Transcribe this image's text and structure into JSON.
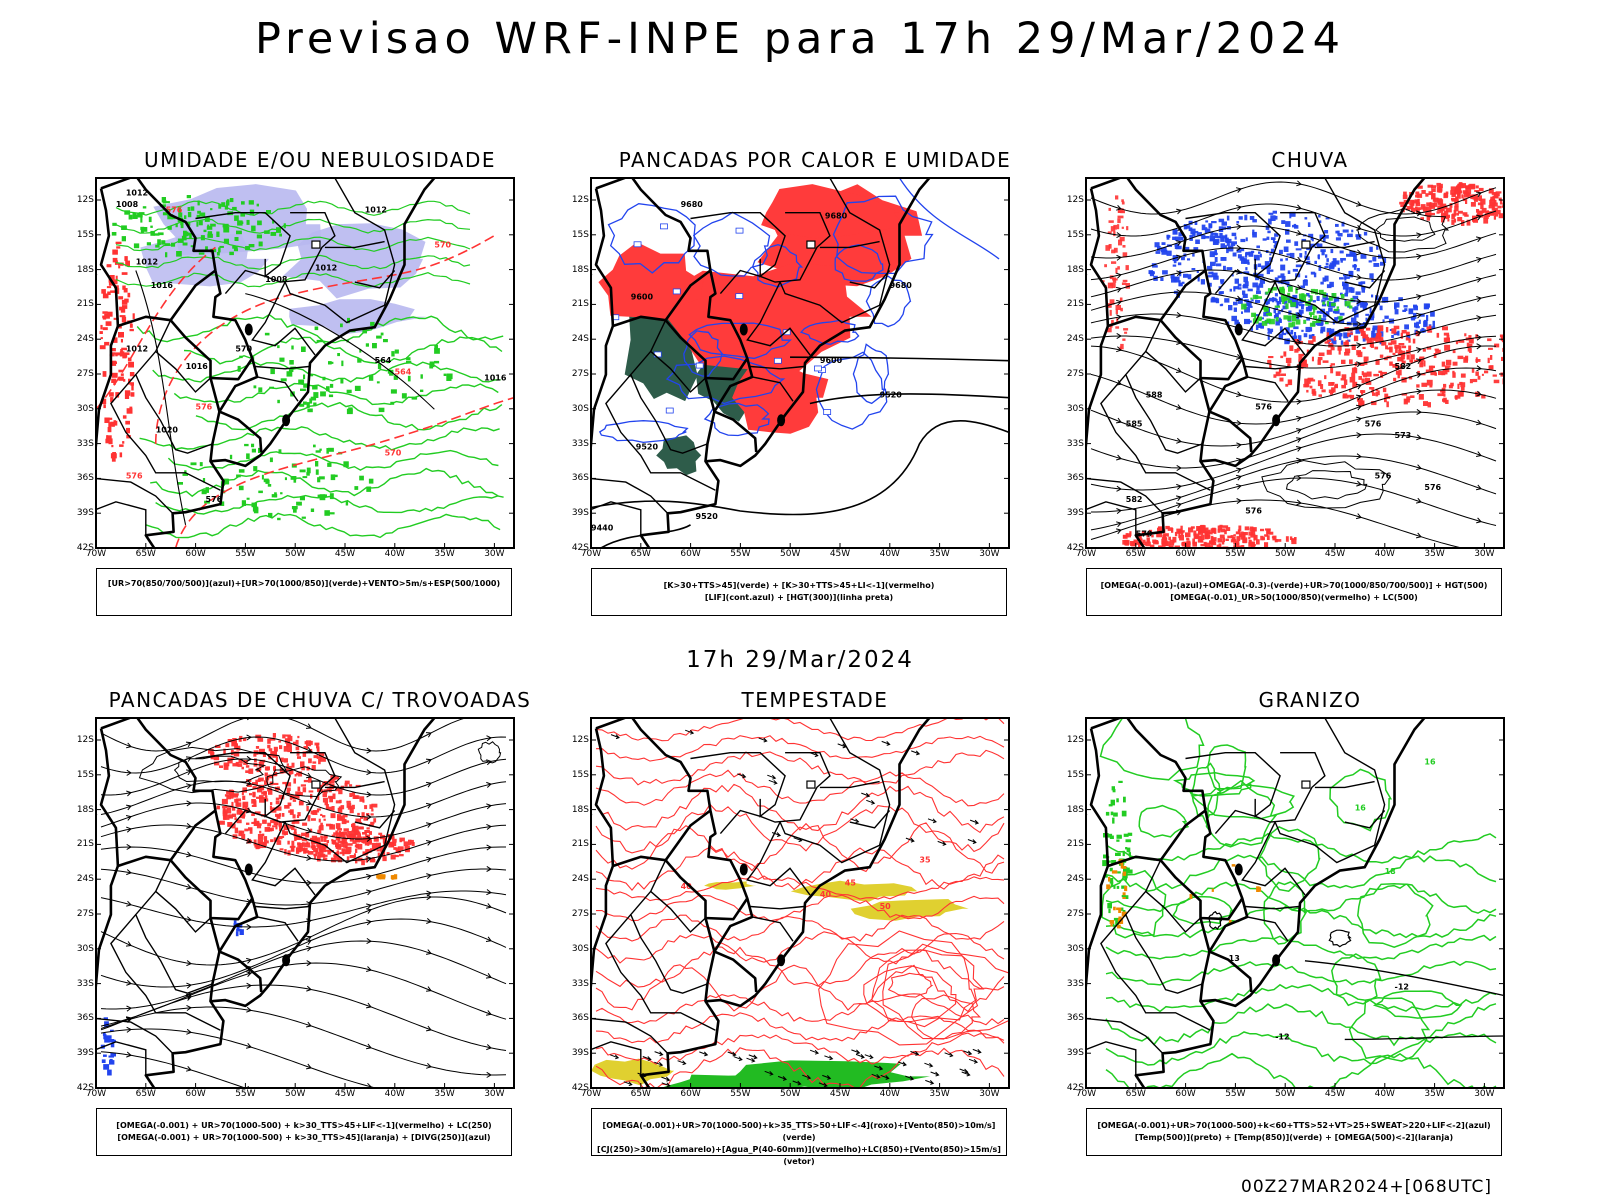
{
  "header": {
    "title": "Previsao WRF-INPE  para 17h 29/Mar/2024"
  },
  "middle_title": "17h 29/Mar/2024",
  "footer": "00Z27MAR2024+[068UTC]",
  "axes": {
    "lat_labels": [
      "12S",
      "15S",
      "18S",
      "21S",
      "24S",
      "27S",
      "30S",
      "33S",
      "36S",
      "39S",
      "42S"
    ],
    "lon_labels": [
      "70W",
      "65W",
      "60W",
      "55W",
      "50W",
      "45W",
      "40W",
      "35W",
      "30W"
    ]
  },
  "colors": {
    "green": "#22cc22",
    "red": "#ff3333",
    "blue": "#2244ee",
    "lavender": "#b8b8f0",
    "darkgreen": "#2e5c4a",
    "yellow": "#e0d030",
    "orange": "#ee8800",
    "black": "#000000"
  },
  "panels": [
    {
      "id": "umidade",
      "title": "UMIDADE E/OU NEBULOSIDADE",
      "legend": [
        "[UR>70(850/700/500)](azul)+[UR>70(1000/850)](verde)+VENTO>5m/s+ESP(500/1000)"
      ],
      "contour_labels": [
        "1012",
        "1008",
        "1012",
        "1016",
        "1012",
        "1016",
        "1020",
        "576",
        "570",
        "564"
      ]
    },
    {
      "id": "pancadas",
      "title": "PANCADAS POR CALOR E UMIDADE",
      "legend": [
        "[K>30+TTS>45](verde) + [K>30+TTS>45+LI<-1](vermelho)",
        "[LIF](cont.azul) + [HGT(300)](linha preta)"
      ],
      "contour_labels": [
        "9680",
        "9680",
        "9600",
        "9600",
        "9520",
        "9520",
        "9440"
      ]
    },
    {
      "id": "chuva",
      "title": "CHUVA",
      "legend": [
        "[OMEGA(-0.001)-(azul)+OMEGA(-0.3)-(verde)+UR>70(1000/850/700/500)] + HGT(500)",
        "[OMEGA(-0.01)_UR>50(1000/850)(vermelho) + LC(500)"
      ],
      "contour_labels": [
        "588",
        "585",
        "582",
        "579",
        "576",
        "573",
        "576"
      ]
    },
    {
      "id": "trovoadas",
      "title": "PANCADAS DE CHUVA C/ TROVOADAS",
      "legend": [
        "[OMEGA(-0.001) + UR>70(1000-500) + k>30_TTS>45+LIF<-1](vermelho) + LC(250)",
        "[OMEGA(-0.001) + UR>70(1000-500) + k>30_TTS>45](laranja) + [DIVG(250)](azul)"
      ],
      "contour_labels": []
    },
    {
      "id": "tempestade",
      "title": "TEMPESTADE",
      "legend": [
        "[OMEGA(-0.001)+UR>70(1000-500)+k>35_TTS>50+LIF<-4](roxo)+[Vento(850)>10m/s](verde)",
        "[CJ(250)>30m/s](amarelo)+[Agua_P(40-60mm)](vermelho)+LC(850)+[Vento(850)>15m/s](vetor)"
      ],
      "contour_labels": [
        "40",
        "50",
        "45",
        "40",
        "35"
      ]
    },
    {
      "id": "granizo",
      "title": "GRANIZO",
      "legend": [
        "[OMEGA(-0.001)+UR>70(1000-500)+k<60+TTS>52+VT>25+SWEAT>220+LIF<-2](azul)",
        "[Temp(500)](preto) + [Temp(850)](verde) + [OMEGA(500)<-2](laranja)"
      ],
      "contour_labels": [
        "-12",
        "-12",
        "-13",
        "16",
        "16",
        "18"
      ]
    }
  ]
}
